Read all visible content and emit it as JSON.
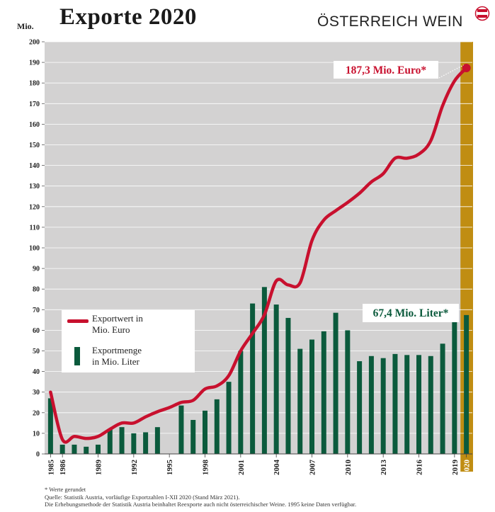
{
  "header": {
    "title": "Exporte 2020",
    "unit_label": "Mio.",
    "brand": "ÖSTERREICH WEIN"
  },
  "legend": {
    "line_label_1": "Exportwert in",
    "line_label_2": "Mio. Euro",
    "bar_label_1": "Exportmenge",
    "bar_label_2": "in Mio. Liter"
  },
  "annotations": {
    "value_2020": "187,3 Mio. Euro*",
    "volume_2020": "67,4 Mio. Liter*"
  },
  "footnotes": {
    "note": "* Werte gerundet",
    "source": "Quelle: Statistik Austria, vorläufige Exportzahlen I-XII 2020 (Stand März 2021).",
    "method": "Die Erhebungsmethode der Statistik Austria beinhaltet Reexporte auch nicht österreichischer Weine. 1995 keine Daten verfügbar."
  },
  "colors": {
    "plot_bg": "#d3d2d2",
    "line": "#c8102e",
    "bars": "#0b5a3c",
    "highlight": "#c08d12",
    "grid": "#ffffff"
  },
  "chart_data": {
    "type": "bar",
    "x": [
      1985,
      1986,
      1987,
      1988,
      1989,
      1990,
      1991,
      1992,
      1993,
      1994,
      1995,
      1996,
      1997,
      1998,
      1999,
      2000,
      2001,
      2002,
      2003,
      2004,
      2005,
      2006,
      2007,
      2008,
      2009,
      2010,
      2011,
      2012,
      2013,
      2014,
      2015,
      2016,
      2017,
      2018,
      2019,
      2020
    ],
    "tick_labels": [
      "1985",
      "1986",
      "1989",
      "1992",
      "1995",
      "1998",
      "2001",
      "2004",
      "2007",
      "2010",
      "2013",
      "2016",
      "2019",
      "2020"
    ],
    "ylim": [
      0,
      200
    ],
    "yticks": [
      0,
      10,
      20,
      30,
      40,
      50,
      60,
      70,
      80,
      90,
      100,
      110,
      120,
      130,
      140,
      150,
      160,
      170,
      180,
      190,
      200
    ],
    "grid": true,
    "highlight_year": 2020,
    "series": [
      {
        "name": "Exportmenge in Mio. Liter",
        "type": "bar",
        "values": [
          27,
          4.5,
          4.5,
          3.5,
          4.5,
          12,
          13,
          10,
          10.5,
          13,
          null,
          23.5,
          16.5,
          21,
          26.5,
          35,
          50,
          73,
          81,
          72.5,
          66,
          51,
          55.5,
          59.5,
          68.5,
          60,
          45,
          47.5,
          46.5,
          48.5,
          48,
          48,
          47.5,
          53.5,
          64.5,
          67.4
        ]
      },
      {
        "name": "Exportwert in Mio. Euro",
        "type": "line",
        "values": [
          30,
          7,
          8.5,
          7.5,
          8.5,
          12,
          15,
          15,
          18,
          20.5,
          22.5,
          25,
          26,
          31.5,
          33,
          38,
          50,
          58.5,
          67.5,
          84,
          82,
          83,
          103.5,
          113.5,
          118,
          122,
          126.5,
          132,
          136,
          143.5,
          143.5,
          145.5,
          152,
          169,
          181,
          187.3
        ]
      }
    ]
  }
}
